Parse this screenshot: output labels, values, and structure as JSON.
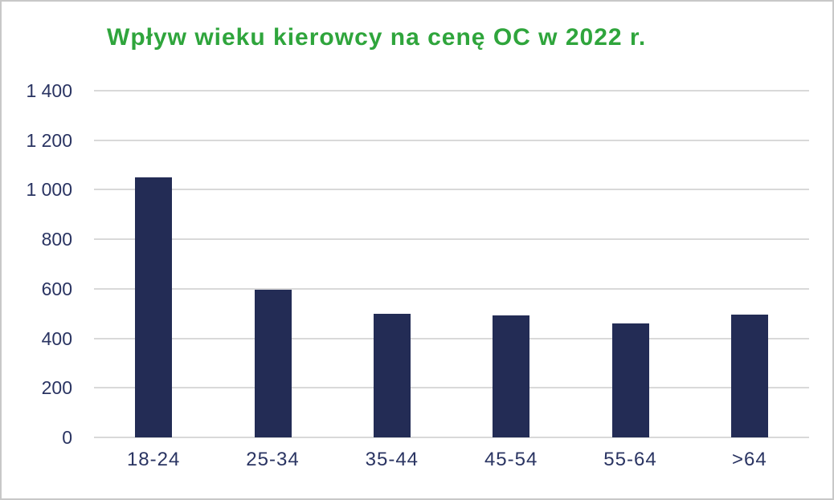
{
  "page": {
    "background": "#ffffff",
    "border_color": "#c8c8c8"
  },
  "chart_data": {
    "type": "bar",
    "title": "Wpływ wieku kierowcy na cenę OC w 2022 r.",
    "categories": [
      "18-24",
      "25-34",
      "35-44",
      "45-54",
      "55-64",
      ">64"
    ],
    "values": [
      1050,
      595,
      500,
      493,
      460,
      495
    ],
    "xlabel": "",
    "ylabel": "",
    "ylim": [
      0,
      1400
    ],
    "ytick_step": 200,
    "yticks": [
      0,
      200,
      400,
      600,
      800,
      1000,
      1200,
      1400
    ],
    "ytick_labels": [
      "0",
      "200",
      "400",
      "600",
      "800",
      "1 000",
      "1 200",
      "1 400"
    ],
    "grid": true,
    "legend": false,
    "bar_color": "#232c55",
    "title_color": "#2fa53c",
    "axis_text_color": "#2a3462",
    "gridline_color": "#d9d9d9"
  }
}
